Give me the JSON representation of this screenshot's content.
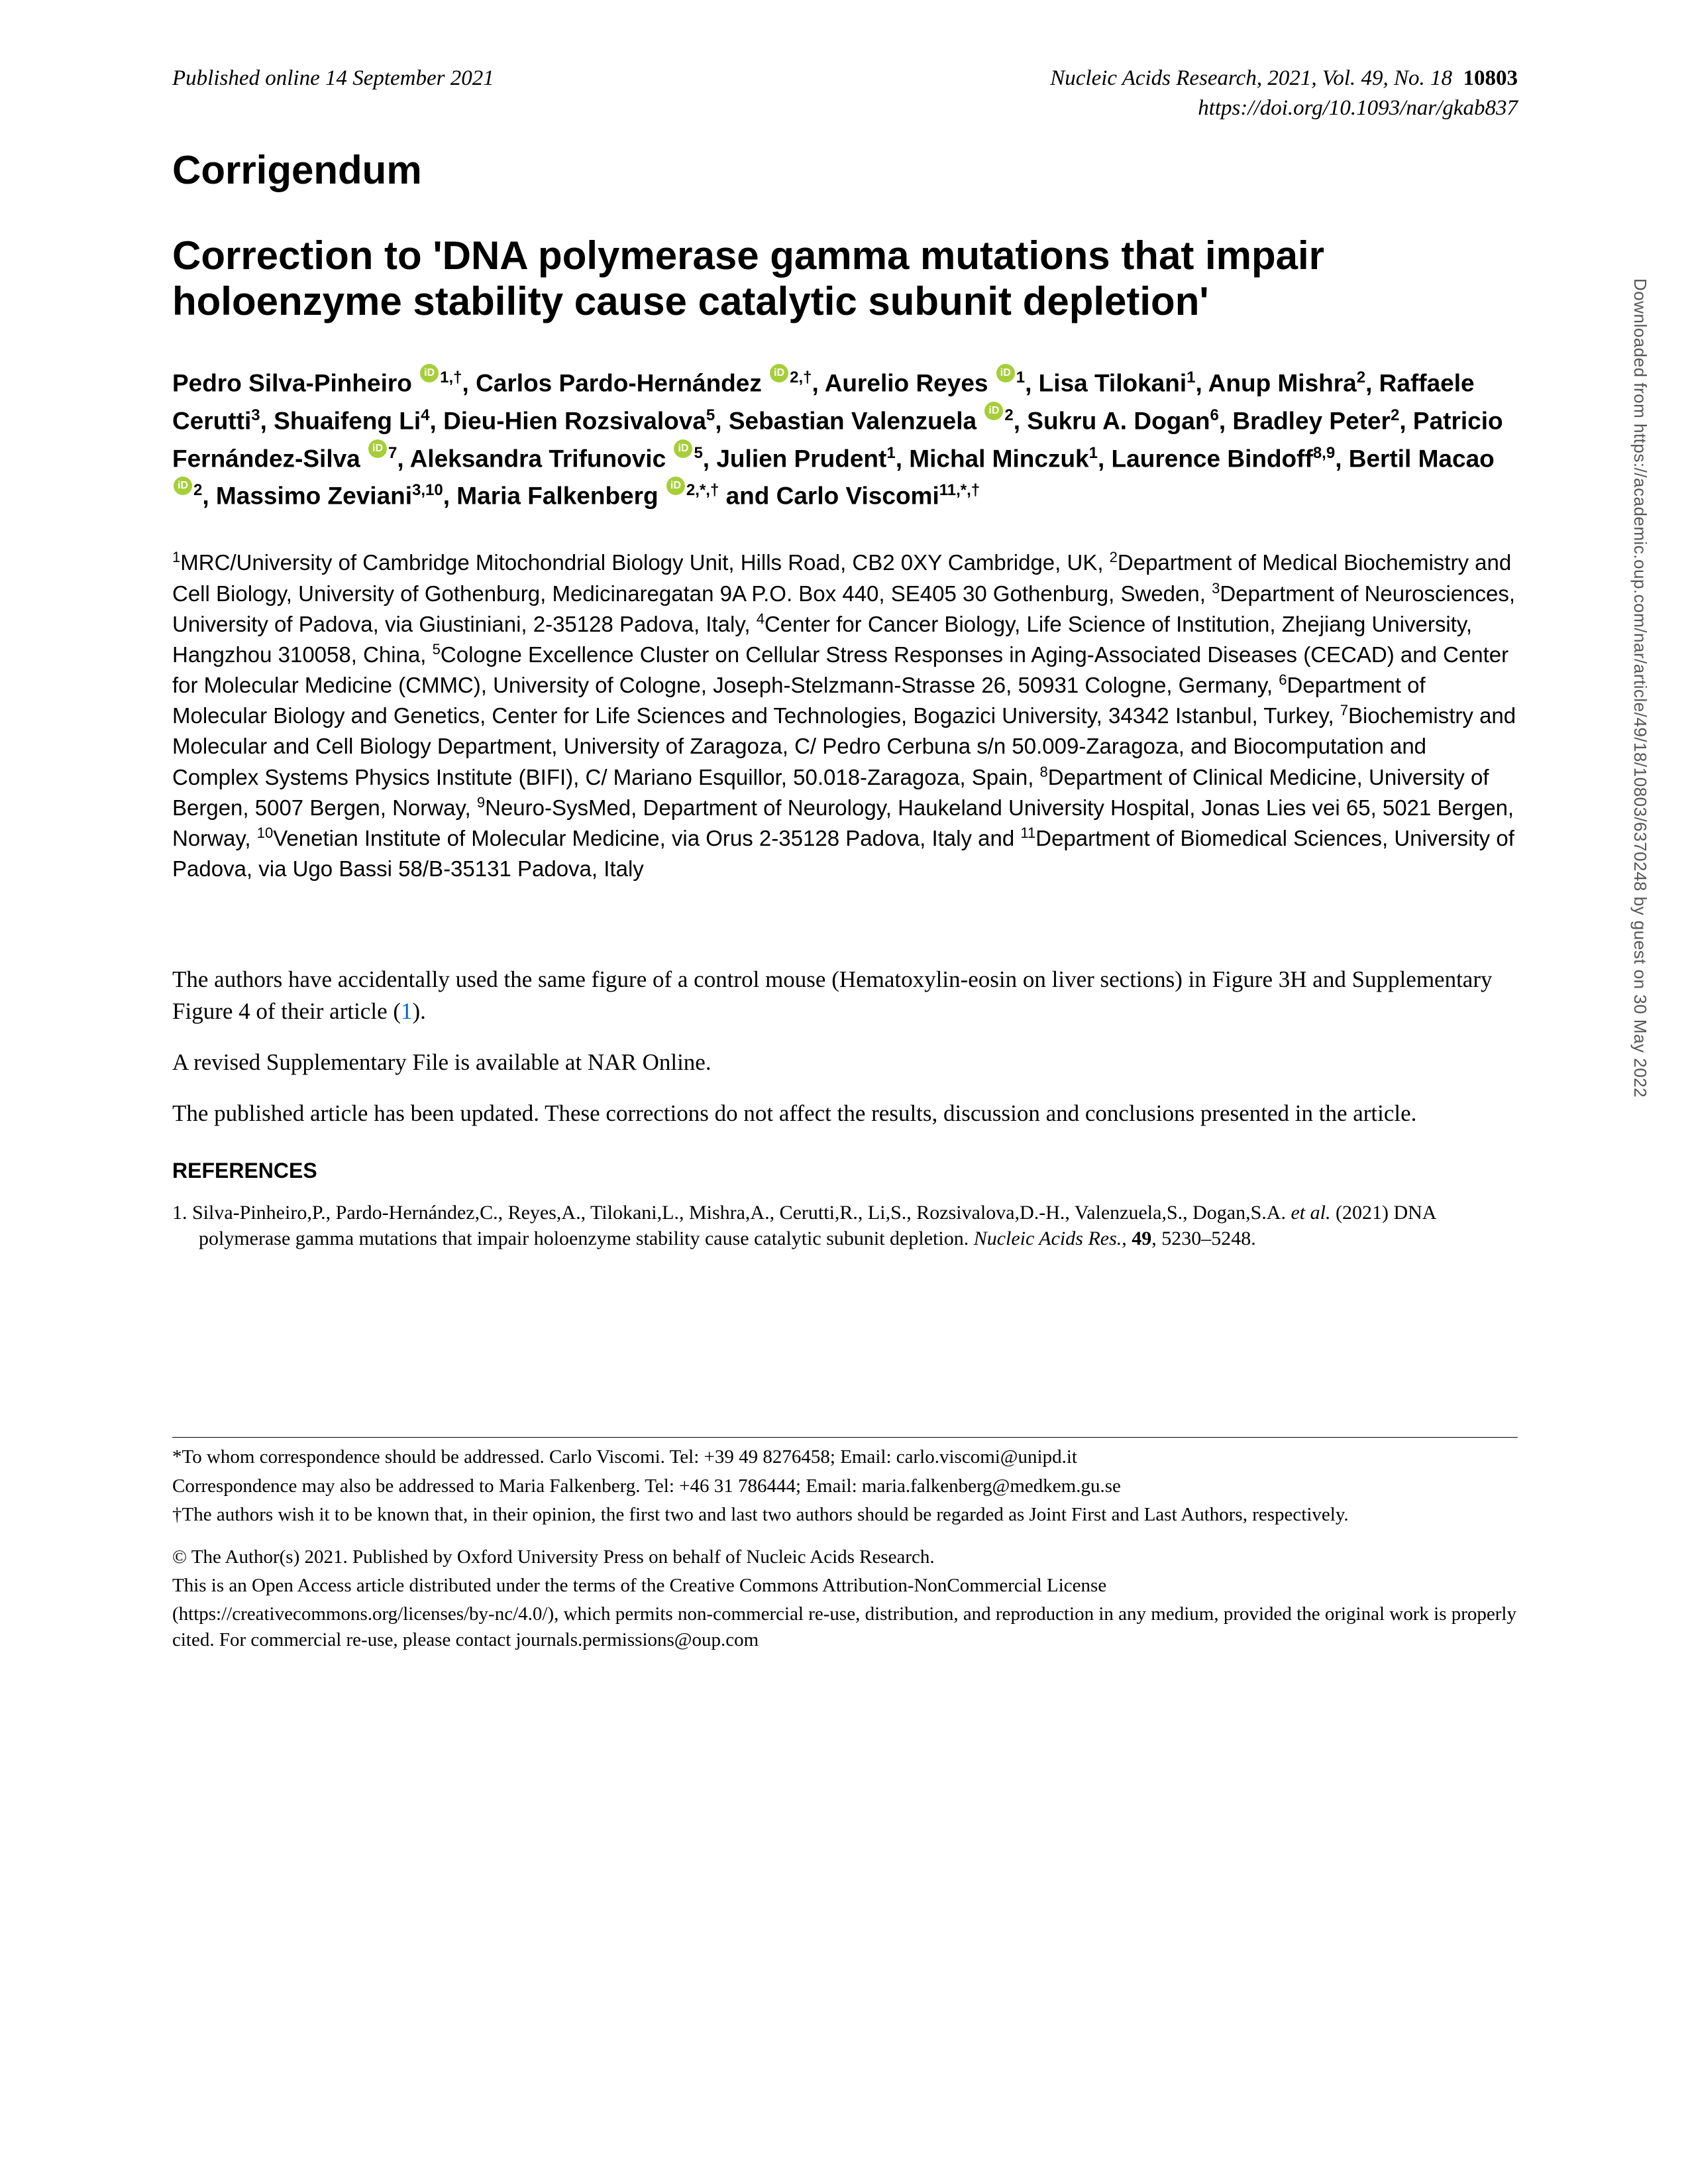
{
  "header": {
    "published": "Published online 14 September 2021",
    "journal": "Nucleic Acids Research, 2021, Vol. 49, No. 18",
    "page_number": "10803",
    "doi": "https://doi.org/10.1093/nar/gkab837"
  },
  "labels": {
    "corrigendum": "Corrigendum",
    "references": "REFERENCES"
  },
  "title": "Correction to 'DNA polymerase gamma mutations that impair holoenzyme stability cause catalytic subunit depletion'",
  "authors_html": "Pedro Silva-Pinheiro <span class=\"orcid\" data-name=\"orcid-icon\" data-interactable=\"true\"></span><sup>1,†</sup>, Carlos Pardo-Hernández <span class=\"orcid\" data-name=\"orcid-icon\" data-interactable=\"true\"></span><sup>2,†</sup>, Aurelio Reyes <span class=\"orcid\" data-name=\"orcid-icon\" data-interactable=\"true\"></span><sup>1</sup>, Lisa Tilokani<sup>1</sup>, Anup Mishra<sup>2</sup>, Raffaele Cerutti<sup>3</sup>, Shuaifeng Li<sup>4</sup>, Dieu-Hien Rozsivalova<sup>5</sup>, Sebastian Valenzuela <span class=\"orcid\" data-name=\"orcid-icon\" data-interactable=\"true\"></span><sup>2</sup>, Sukru A. Dogan<sup>6</sup>, Bradley Peter<sup>2</sup>, Patricio Fernández-Silva <span class=\"orcid\" data-name=\"orcid-icon\" data-interactable=\"true\"></span><sup>7</sup>, Aleksandra Trifunovic <span class=\"orcid\" data-name=\"orcid-icon\" data-interactable=\"true\"></span><sup>5</sup>, Julien Prudent<sup>1</sup>, Michal Minczuk<sup>1</sup>, Laurence Bindoff<sup>8,9</sup>, Bertil Macao <span class=\"orcid\" data-name=\"orcid-icon\" data-interactable=\"true\"></span><sup>2</sup>, Massimo Zeviani<sup>3,10</sup>, Maria Falkenberg <span class=\"orcid\" data-name=\"orcid-icon\" data-interactable=\"true\"></span><sup>2,*,†</sup> and Carlo Viscomi<sup>11,*,†</sup>",
  "affiliations_html": "<sup>1</sup>MRC/University of Cambridge Mitochondrial Biology Unit, Hills Road, CB2 0XY Cambridge, UK, <sup>2</sup>Department of Medical Biochemistry and Cell Biology, University of Gothenburg, Medicinaregatan 9A P.O. Box 440, SE405 30 Gothenburg, Sweden, <sup>3</sup>Department of Neurosciences, University of Padova, via Giustiniani, 2-35128 Padova, Italy, <sup>4</sup>Center for Cancer Biology, Life Science of Institution, Zhejiang University, Hangzhou 310058, China, <sup>5</sup>Cologne Excellence Cluster on Cellular Stress Responses in Aging-Associated Diseases (CECAD) and Center for Molecular Medicine (CMMC), University of Cologne, Joseph-Stelzmann-Strasse 26, 50931 Cologne, Germany, <sup>6</sup>Department of Molecular Biology and Genetics, Center for Life Sciences and Technologies, Bogazici University, 34342 Istanbul, Turkey, <sup>7</sup>Biochemistry and Molecular and Cell Biology Department, University of Zaragoza, C/ Pedro Cerbuna s/n 50.009-Zaragoza, and Biocomputation and Complex Systems Physics Institute (BIFI), C/ Mariano Esquillor, 50.018-Zaragoza, Spain, <sup>8</sup>Department of Clinical Medicine, University of Bergen, 5007 Bergen, Norway, <sup>9</sup>Neuro-SysMed, Department of Neurology, Haukeland University Hospital, Jonas Lies vei 65, 5021 Bergen, Norway, <sup>10</sup>Venetian Institute of Molecular Medicine, via Orus 2-35128 Padova, Italy and <sup>11</sup>Department of Biomedical Sciences, University of Padova, via Ugo Bassi 58/B-35131 Padova, Italy",
  "body": {
    "p1_pre": "The authors have accidentally used the same figure of a control mouse (Hematoxylin-eosin on liver sections) in Figure 3H and Supplementary Figure 4 of their article (",
    "p1_link": "1",
    "p1_post": ").",
    "p2": "A revised Supplementary File is available at NAR Online.",
    "p3": "The published article has been updated. These corrections do not affect the results, discussion and conclusions presented in the article."
  },
  "reference": {
    "num": "1.",
    "authors": "Silva-Pinheiro,P., Pardo-Hernández,C., Reyes,A., Tilokani,L., Mishra,A., Cerutti,R., Li,S., Rozsivalova,D.-H., Valenzuela,S., Dogan,S.A.",
    "etal": " et al.",
    "year": " (2021) ",
    "title": "DNA polymerase gamma mutations that impair holoenzyme stability cause catalytic subunit depletion. ",
    "journal": "Nucleic Acids Res.",
    "vol": "49",
    "pages": ", 5230–5248."
  },
  "footnotes": {
    "f1": "*To whom correspondence should be addressed. Carlo Viscomi. Tel: +39 49 8276458; Email: carlo.viscomi@unipd.it",
    "f2": "Correspondence may also be addressed to Maria Falkenberg. Tel: +46 31 786444; Email: maria.falkenberg@medkem.gu.se",
    "f3": "†The authors wish it to be known that, in their opinion, the first two and last two authors should be regarded as Joint First and Last Authors, respectively."
  },
  "copyright": {
    "c1": "© The Author(s) 2021. Published by Oxford University Press on behalf of Nucleic Acids Research.",
    "c2": "This is an Open Access article distributed under the terms of the Creative Commons Attribution-NonCommercial License",
    "c3": "(https://creativecommons.org/licenses/by-nc/4.0/), which permits non-commercial re-use, distribution, and reproduction in any medium, provided the original work is properly cited. For commercial re-use, please contact journals.permissions@oup.com"
  },
  "side_note": "Downloaded from https://academic.oup.com/nar/article/49/18/10803/6370248 by guest on 30 May 2022"
}
